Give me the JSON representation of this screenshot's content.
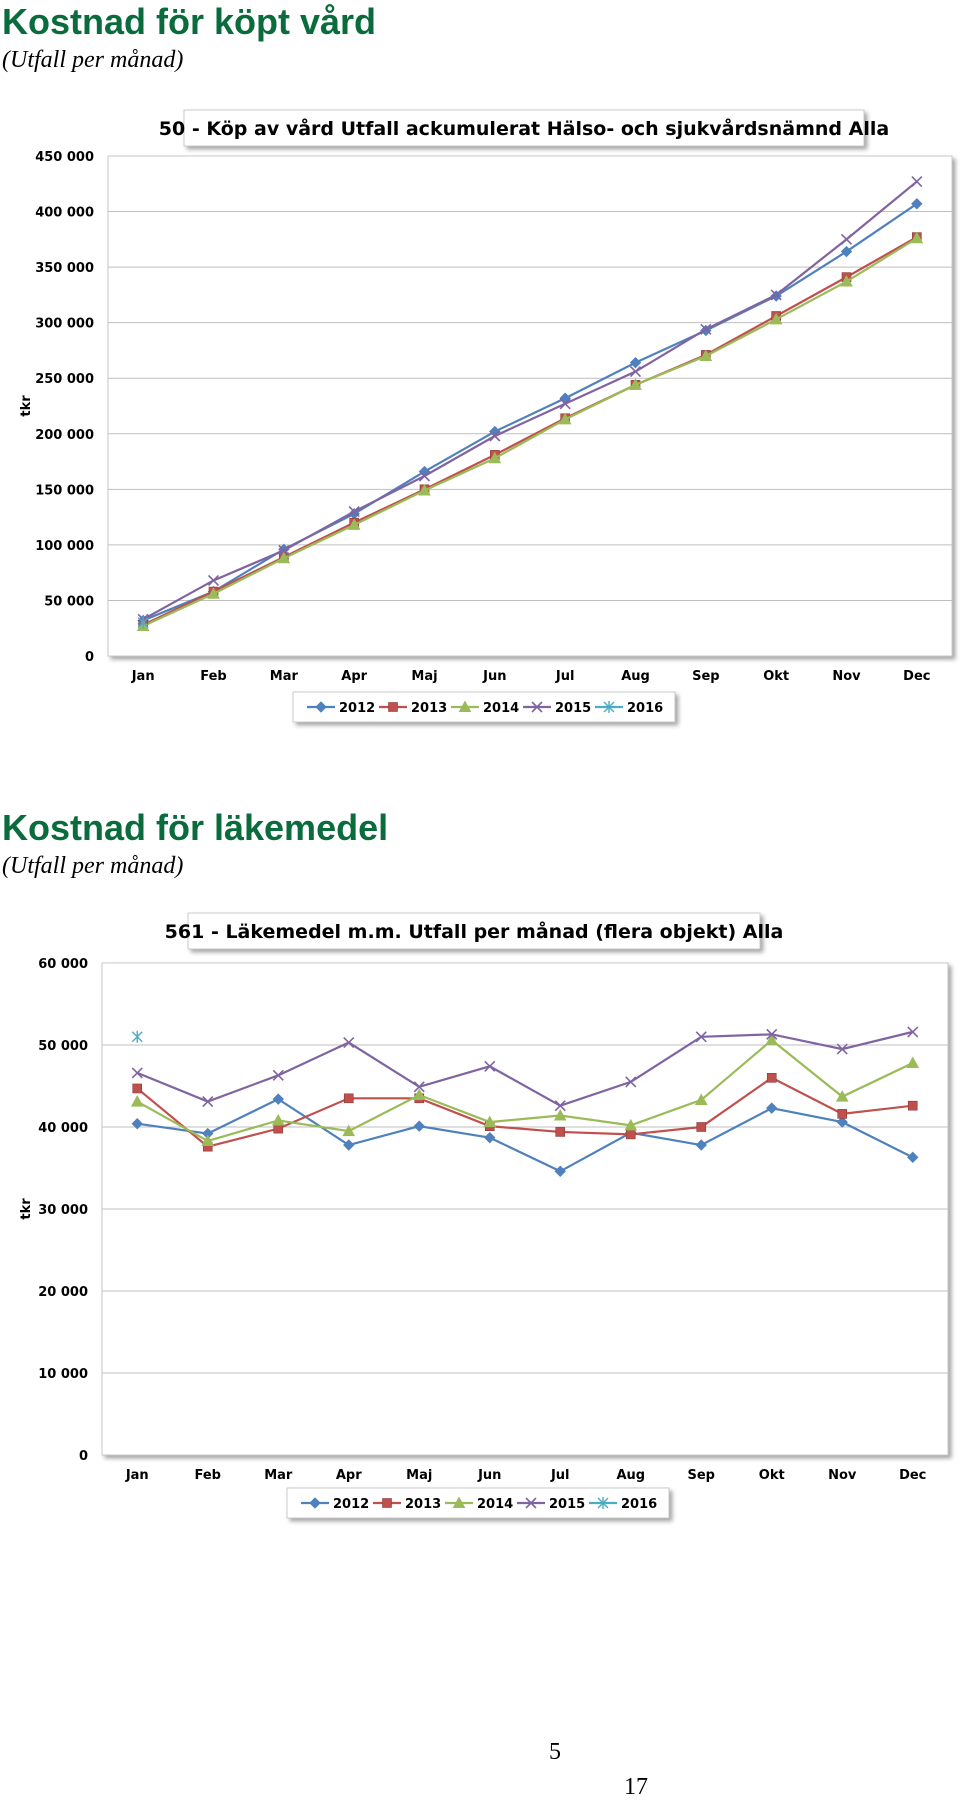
{
  "sections": [
    {
      "heading": "Kostnad för köpt vård",
      "subheading": "(Utfall per månad)"
    },
    {
      "heading": "Kostnad för läkemedel",
      "subheading": "(Utfall per månad)"
    }
  ],
  "page_numbers": [
    "5",
    "17"
  ],
  "chart_data": [
    {
      "type": "line",
      "title": "50 - Köp av vård Utfall ackumulerat Hälso- och sjukvårdsnämnd  Alla",
      "xlabel": "",
      "ylabel": "tkr",
      "ylim": [
        0,
        450000
      ],
      "yticks": [
        0,
        50000,
        100000,
        150000,
        200000,
        250000,
        300000,
        350000,
        400000,
        450000
      ],
      "ytick_labels": [
        "0",
        "50 000",
        "100 000",
        "150 000",
        "200 000",
        "250 000",
        "300 000",
        "350 000",
        "400 000",
        "450 000"
      ],
      "categories": [
        "Jan",
        "Feb",
        "Mar",
        "Apr",
        "Maj",
        "Jun",
        "Jul",
        "Aug",
        "Sep",
        "Okt",
        "Nov",
        "Dec"
      ],
      "grid": true,
      "legend_position": "bottom",
      "series": [
        {
          "name": "2012",
          "color": "#4f81bd",
          "marker": "diamond",
          "values": [
            32000,
            58000,
            96000,
            128000,
            166000,
            202000,
            232000,
            264000,
            293000,
            324000,
            364000,
            407000
          ]
        },
        {
          "name": "2013",
          "color": "#c0504d",
          "marker": "square",
          "values": [
            28000,
            58000,
            89000,
            120000,
            150000,
            181000,
            214000,
            244000,
            271000,
            306000,
            341000,
            377000
          ]
        },
        {
          "name": "2014",
          "color": "#9bbb59",
          "marker": "triangle",
          "values": [
            27000,
            56000,
            88000,
            118000,
            149000,
            178000,
            213000,
            244000,
            270000,
            303000,
            337000,
            376000
          ]
        },
        {
          "name": "2015",
          "color": "#8064a2",
          "marker": "x",
          "values": [
            33000,
            68000,
            95000,
            130000,
            162000,
            198000,
            227000,
            256000,
            294000,
            325000,
            375000,
            427000
          ]
        },
        {
          "name": "2016",
          "color": "#4bacc6",
          "marker": "star",
          "values": [
            30000,
            null,
            null,
            null,
            null,
            null,
            null,
            null,
            null,
            null,
            null,
            null
          ]
        }
      ]
    },
    {
      "type": "line",
      "title": "561 - Läkemedel m.m. Utfall per månad (flera objekt)  Alla",
      "xlabel": "",
      "ylabel": "tkr",
      "ylim": [
        0,
        60000
      ],
      "yticks": [
        0,
        10000,
        20000,
        30000,
        40000,
        50000,
        60000
      ],
      "ytick_labels": [
        "0",
        "10 000",
        "20 000",
        "30 000",
        "40 000",
        "50 000",
        "60 000"
      ],
      "categories": [
        "Jan",
        "Feb",
        "Mar",
        "Apr",
        "Maj",
        "Jun",
        "Jul",
        "Aug",
        "Sep",
        "Okt",
        "Nov",
        "Dec"
      ],
      "grid": true,
      "legend_position": "bottom",
      "series": [
        {
          "name": "2012",
          "color": "#4f81bd",
          "marker": "diamond",
          "values": [
            40400,
            39200,
            43400,
            37800,
            40100,
            38700,
            34600,
            39300,
            37800,
            42300,
            40600,
            36300
          ]
        },
        {
          "name": "2013",
          "color": "#c0504d",
          "marker": "square",
          "values": [
            44700,
            37600,
            39800,
            43500,
            43500,
            40100,
            39400,
            39100,
            40000,
            46000,
            41600,
            42600
          ]
        },
        {
          "name": "2014",
          "color": "#9bbb59",
          "marker": "triangle",
          "values": [
            43100,
            38300,
            40800,
            39500,
            43900,
            40600,
            41400,
            40200,
            43300,
            50600,
            43700,
            47800
          ]
        },
        {
          "name": "2015",
          "color": "#8064a2",
          "marker": "x",
          "values": [
            46600,
            43100,
            46300,
            50300,
            44900,
            47400,
            42600,
            45500,
            51000,
            51300,
            49500,
            51600
          ]
        },
        {
          "name": "2016",
          "color": "#4bacc6",
          "marker": "star",
          "values": [
            51000,
            null,
            null,
            null,
            null,
            null,
            null,
            null,
            null,
            null,
            null,
            null
          ]
        }
      ]
    }
  ]
}
